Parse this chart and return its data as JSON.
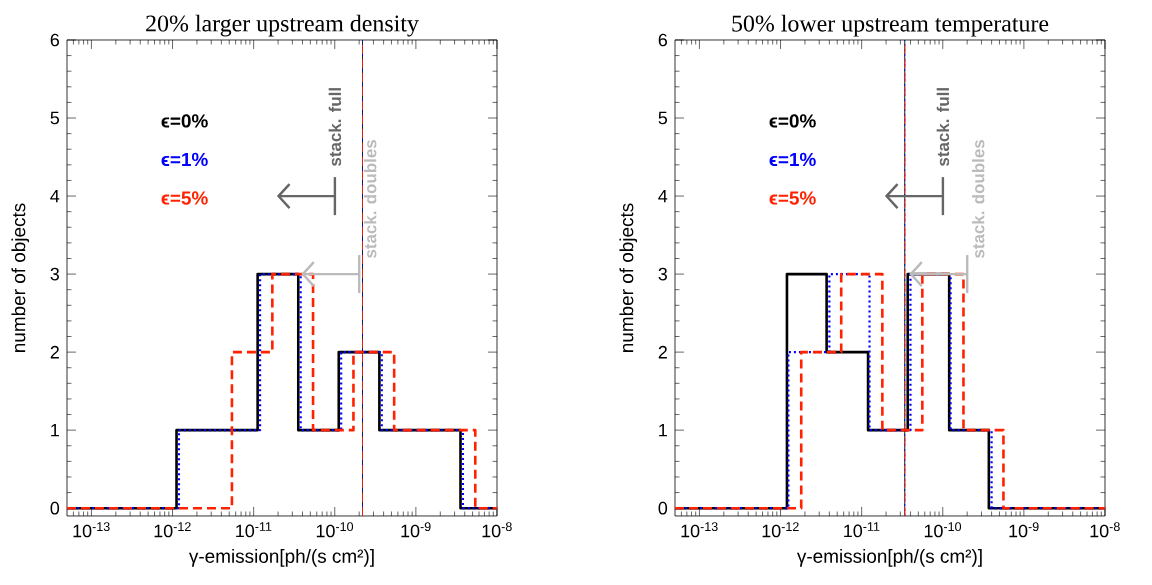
{
  "chart_data": [
    {
      "type": "step",
      "title": "20% larger upstream density",
      "xlabel": "γ-emission[ph/(s cm²)]",
      "ylabel": "number of objects",
      "log": "x",
      "xlim": [
        5e-14,
        1e-08
      ],
      "ylim": [
        -0.1,
        6
      ],
      "xticks": [
        {
          "value": 1e-13,
          "label": "10$^{-13}$"
        },
        {
          "value": 1e-12,
          "label": "10$^{-12}$"
        },
        {
          "value": 1e-11,
          "label": "10$^{-11}$"
        },
        {
          "value": 1e-10,
          "label": "10$^{-10}$"
        },
        {
          "value": 1e-09,
          "label": "10$^{-9}$"
        },
        {
          "value": 1e-08,
          "label": "10$^{-8}$"
        }
      ],
      "yticks": [
        {
          "value": 0,
          "label": "0"
        },
        {
          "value": 1,
          "label": "1"
        },
        {
          "value": 2,
          "label": "2"
        },
        {
          "value": 3,
          "label": "3"
        },
        {
          "value": 4,
          "label": "4"
        },
        {
          "value": 5,
          "label": "5"
        },
        {
          "value": 6,
          "label": "6"
        }
      ],
      "series": [
        {
          "name": "ϵ=0%",
          "color": "#000000",
          "line_style": "solid",
          "x": [
            5e-14,
            1.12e-12,
            3.55e-12,
            1.12e-11,
            3.55e-11,
            1.12e-10,
            3.55e-10,
            1.12e-09,
            3.55e-09,
            1e-08
          ],
          "values": [
            0,
            1,
            1,
            3,
            1,
            2,
            1,
            1,
            0,
            0
          ]
        },
        {
          "name": "ϵ=1%",
          "color": "#0000ff",
          "line_style": "dotted",
          "x": [
            5e-14,
            1.2e-12,
            3.8e-12,
            1.2e-11,
            3.8e-11,
            1.2e-10,
            3.8e-10,
            1.2e-09,
            3.8e-09,
            1e-08
          ],
          "values": [
            0,
            1,
            1,
            3,
            1,
            2,
            1,
            1,
            0,
            0
          ]
        },
        {
          "name": "ϵ=5%",
          "color": "#ff2200",
          "line_style": "dashed",
          "x": [
            5e-14,
            5.4e-12,
            1.7e-11,
            5.4e-11,
            1.7e-10,
            5.4e-10,
            1.7e-09,
            5.4e-09,
            1e-08
          ],
          "values": [
            0,
            2,
            3,
            1,
            2,
            1,
            1,
            0,
            0
          ]
        }
      ],
      "ref_lines": [
        {
          "axis": "x",
          "value": 2.2e-10,
          "color": "#000000",
          "line_style": "solid"
        },
        {
          "axis": "x",
          "value": 2.2e-10,
          "color": "#0000ff",
          "line_style": "dotted"
        },
        {
          "axis": "x",
          "value": 2.2e-10,
          "color": "#ff2200",
          "line_style": "dashed"
        }
      ],
      "annotations": [
        "stack. full",
        {
          "text": "stack. doubles",
          "x": 2e-10,
          "y": 3
        }
      ]
    },
    {
      "type": "step",
      "title": "50% lower upstream temperature",
      "xlabel": "γ-emission[ph/(s cm²)]",
      "ylabel": "number of objects",
      "log": "x",
      "xlim": [
        5e-14,
        1e-08
      ],
      "ylim": [
        -0.1,
        6
      ],
      "xticks": [
        {
          "value": 1e-13,
          "label": "10$^{-13}$"
        },
        {
          "value": 1e-12,
          "label": "10$^{-12}$"
        },
        {
          "value": 1e-11,
          "label": "10$^{-11}$"
        },
        {
          "value": 1e-10,
          "label": "10$^{-10}$"
        },
        {
          "value": 1e-09,
          "label": "10$^{-9}$"
        },
        {
          "value": 1e-08,
          "label": "10$^{-8}$"
        }
      ],
      "yticks": [
        {
          "value": 0,
          "label": "0"
        },
        {
          "value": 1,
          "label": "1"
        },
        {
          "value": 2,
          "label": "2"
        },
        {
          "value": 3,
          "label": "3"
        },
        {
          "value": 4,
          "label": "4"
        },
        {
          "value": 5,
          "label": "5"
        },
        {
          "value": 6,
          "label": "6"
        }
      ],
      "series": [
        {
          "name": "ϵ=0%",
          "color": "#000000",
          "line_style": "solid",
          "x": [
            5e-14,
            1.2e-12,
            3.7e-12,
            1.2e-11,
            3.7e-11,
            1.2e-10,
            3.7e-10,
            1e-08
          ],
          "values": [
            0,
            3,
            2,
            1,
            3,
            1,
            0,
            0
          ]
        },
        {
          "name": "ϵ=1%",
          "color": "#0000ff",
          "line_style": "dotted",
          "x": [
            5e-14,
            1.25e-12,
            4e-12,
            1.25e-11,
            4e-11,
            1.25e-10,
            4e-10,
            1e-08
          ],
          "values": [
            0,
            2,
            3,
            1,
            3,
            1,
            0,
            0
          ]
        },
        {
          "name": "ϵ=5%",
          "color": "#ff2200",
          "line_style": "dashed",
          "x": [
            5e-14,
            1.8e-12,
            5.6e-12,
            1.8e-11,
            5.6e-11,
            1.8e-10,
            5.6e-10,
            1e-08
          ],
          "values": [
            0,
            2,
            3,
            1,
            3,
            1,
            0,
            0
          ]
        }
      ],
      "ref_lines": [
        {
          "axis": "x",
          "value": 3.4e-11,
          "color": "#000000",
          "line_style": "solid"
        },
        {
          "axis": "x",
          "value": 3.4e-11,
          "color": "#0000ff",
          "line_style": "dotted"
        },
        {
          "axis": "x",
          "value": 3.4e-11,
          "color": "#ff2200",
          "line_style": "dashed"
        }
      ],
      "annotations": [
        "stack. full",
        {
          "text": "stack. doubles",
          "x": 2e-10,
          "y": 3
        }
      ]
    }
  ]
}
